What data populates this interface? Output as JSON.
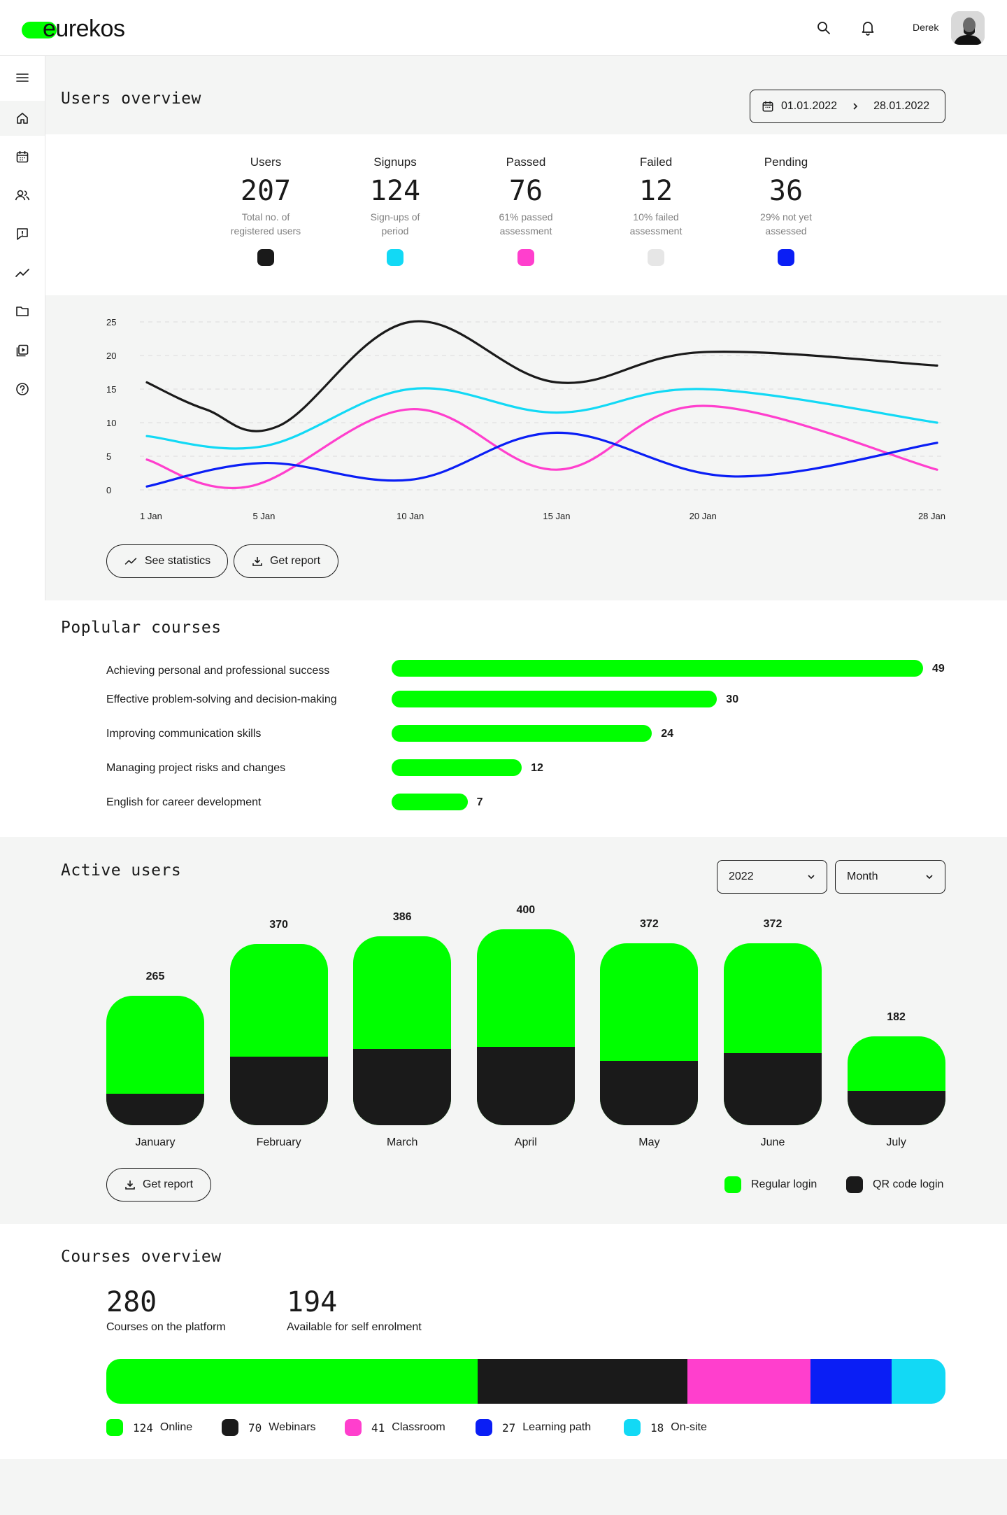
{
  "header": {
    "logo_text": "eurekos",
    "user_name": "Derek",
    "icons": [
      "search-icon",
      "bell-icon"
    ]
  },
  "sidebar": {
    "items": [
      "menu-icon",
      "home-icon",
      "calendar-icon",
      "users-icon",
      "feedback-icon",
      "trend-icon",
      "folder-icon",
      "media-icon",
      "help-icon"
    ]
  },
  "users_overview": {
    "title": "Users overview",
    "date_from": "01.01.2022",
    "date_to": "28.01.2022",
    "stats": [
      {
        "label": "Users",
        "value": "207",
        "sub1": "Total no. of",
        "sub2": "registered users",
        "color": "#1a1a1a"
      },
      {
        "label": "Signups",
        "value": "124",
        "sub1": "Sign-ups of",
        "sub2": "period",
        "color": "#12d9f5"
      },
      {
        "label": "Passed",
        "value": "76",
        "sub1": "61% passed",
        "sub2": "assessment",
        "color": "#ff3fcd"
      },
      {
        "label": "Failed",
        "value": "12",
        "sub1": "10% failed",
        "sub2": "assessment",
        "color": "#e6e6e6"
      },
      {
        "label": "Pending",
        "value": "36",
        "sub1": "29% not yet",
        "sub2": "assessed",
        "color": "#0a1ef5"
      }
    ],
    "see_statistics": "See statistics",
    "get_report": "Get report"
  },
  "chart_data": [
    {
      "type": "line",
      "x": [
        "1 Jan",
        "5 Jan",
        "10 Jan",
        "15 Jan",
        "20 Jan",
        "28 Jan"
      ],
      "x_days": [
        1,
        5,
        10,
        15,
        20,
        28
      ],
      "yticks": [
        "25",
        "20",
        "15",
        "10",
        "5",
        "0"
      ],
      "ylim": [
        0,
        25
      ],
      "grid": true,
      "series": [
        {
          "color": "#1a1a1a",
          "points": [
            [
              1,
              16
            ],
            [
              3,
              12
            ],
            [
              5.5,
              9.5
            ],
            [
              10,
              25
            ],
            [
              15,
              16
            ],
            [
              20,
              20.5
            ],
            [
              28,
              18.5
            ]
          ]
        },
        {
          "color": "#12d9f5",
          "points": [
            [
              1,
              8
            ],
            [
              5,
              6.5
            ],
            [
              10,
              15
            ],
            [
              15,
              11.5
            ],
            [
              20,
              15
            ],
            [
              28,
              10
            ]
          ]
        },
        {
          "color": "#ff3fcd",
          "points": [
            [
              1,
              4.5
            ],
            [
              4.5,
              0.5
            ],
            [
              10,
              12
            ],
            [
              15,
              3
            ],
            [
              20,
              12.5
            ],
            [
              28,
              3
            ]
          ]
        },
        {
          "color": "#0a1ef5",
          "points": [
            [
              1,
              0.5
            ],
            [
              5,
              4
            ],
            [
              10,
              1.5
            ],
            [
              15,
              8.5
            ],
            [
              21,
              2
            ],
            [
              28,
              7
            ]
          ]
        }
      ]
    },
    {
      "type": "bar",
      "title": "Poplular courses",
      "categories": [
        "Achieving personal and professional success",
        "Effective problem-solving and decision-making",
        "Improving communication skills",
        "Managing project risks and changes",
        "English for career development"
      ],
      "values": [
        49,
        30,
        24,
        12,
        7
      ],
      "color": "#00ff00"
    },
    {
      "type": "bar",
      "title": "Active users",
      "stacked": true,
      "categories": [
        "January",
        "February",
        "March",
        "April",
        "May",
        "June",
        "July"
      ],
      "totals": [
        "265",
        "370",
        "386",
        "400",
        "372",
        "372",
        "182"
      ],
      "series": [
        {
          "name": "Regular login",
          "color": "#00ff00",
          "values": [
            200,
            230,
            230,
            240,
            240,
            225,
            112
          ]
        },
        {
          "name": "QR code login",
          "color": "#1a1a1a",
          "values": [
            65,
            140,
            156,
            160,
            132,
            147,
            70
          ]
        }
      ],
      "legend": "bottom-right"
    }
  ],
  "active_users": {
    "title": "Active users",
    "year": "2022",
    "period": "Month",
    "get_report": "Get report",
    "legend": [
      {
        "label": "Regular login",
        "color": "#00ff00"
      },
      {
        "label": "QR code login",
        "color": "#1a1a1a"
      }
    ]
  },
  "popular_courses": {
    "title": "Poplular courses"
  },
  "courses_overview": {
    "title": "Courses overview",
    "total": "280",
    "total_label": "Courses on the platform",
    "self": "194",
    "self_label": "Available for self enrolment",
    "segments": [
      {
        "count": "124",
        "label": "Online",
        "color": "#00ff00",
        "value": 124
      },
      {
        "count": "70",
        "label": "Webinars",
        "color": "#1a1a1a",
        "value": 70
      },
      {
        "count": "41",
        "label": "Classroom",
        "color": "#ff3fcd",
        "value": 41
      },
      {
        "count": "27",
        "label": "Learning path",
        "color": "#0a1ef5",
        "value": 27
      },
      {
        "count": "18",
        "label": "On-site",
        "color": "#12d9f5",
        "value": 18
      }
    ]
  }
}
